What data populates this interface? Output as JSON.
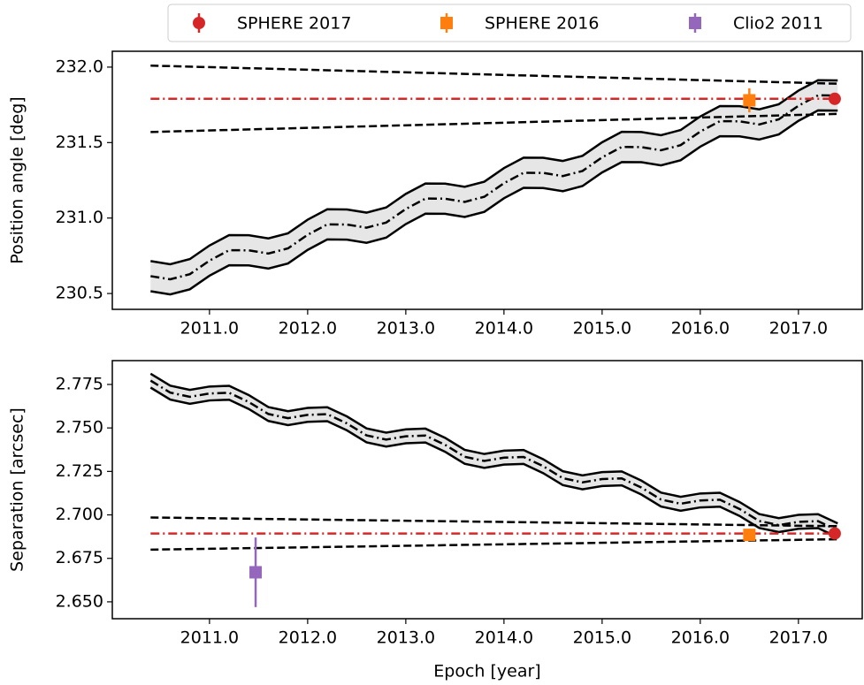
{
  "legend": [
    {
      "name": "SPHERE 2017",
      "color": "#d62728",
      "marker": "circle"
    },
    {
      "name": "SPHERE 2016",
      "color": "#ff7f0e",
      "marker": "square"
    },
    {
      "name": "Clio2 2011",
      "color": "#9467bd",
      "marker": "square"
    }
  ],
  "chart_data": [
    {
      "type": "line",
      "ylabel": "Position angle [deg]",
      "xlim": [
        2010.01,
        2017.65
      ],
      "ylim": [
        230.395,
        232.105
      ],
      "xticks": [
        {
          "value": 2011,
          "label": "2011.0"
        },
        {
          "value": 2012,
          "label": "2012.0"
        },
        {
          "value": 2013,
          "label": "2013.0"
        },
        {
          "value": 2014,
          "label": "2014.0"
        },
        {
          "value": 2015,
          "label": "2015.0"
        },
        {
          "value": 2016,
          "label": "2016.0"
        },
        {
          "value": 2017,
          "label": "2017.0"
        }
      ],
      "yticks": [
        230.5,
        {
          "value": 231,
          "label": "231.0"
        },
        231.5,
        {
          "value": 232,
          "label": "232.0"
        }
      ],
      "x": [
        2010.4,
        2010.6,
        2010.8,
        2011.0,
        2011.2,
        2011.4,
        2011.6,
        2011.8,
        2012.0,
        2012.2,
        2012.4,
        2012.6,
        2012.8,
        2013.0,
        2013.2,
        2013.4,
        2013.6,
        2013.8,
        2014.0,
        2014.2,
        2014.4,
        2014.6,
        2014.8,
        2015.0,
        2015.2,
        2015.4,
        2015.6,
        2015.8,
        2016.0,
        2016.2,
        2016.4,
        2016.6,
        2016.8,
        2017.0,
        2017.2,
        2017.4
      ],
      "series": [
        {
          "color": "#000000",
          "style": "dashdot",
          "band": 0.1,
          "band_color": "#e6e6e6",
          "values": [
            230.615,
            230.594,
            230.628,
            230.718,
            230.787,
            230.786,
            230.765,
            230.799,
            230.889,
            230.958,
            230.957,
            230.936,
            230.97,
            231.06,
            231.129,
            231.128,
            231.107,
            231.141,
            231.231,
            231.3,
            231.299,
            231.278,
            231.312,
            231.402,
            231.471,
            231.47,
            231.449,
            231.483,
            231.573,
            231.642,
            231.641,
            231.62,
            231.654,
            231.744,
            231.813,
            231.812
          ]
        }
      ],
      "lines": [
        {
          "x": [
            2010.4,
            2017.4
          ],
          "values": [
            232.01,
            231.89
          ],
          "color": "#000000",
          "style": "dashed"
        },
        {
          "x": [
            2010.4,
            2017.4
          ],
          "values": [
            231.57,
            231.69
          ],
          "color": "#000000",
          "style": "dashed"
        },
        {
          "x": [
            2010.4,
            2017.4
          ],
          "values": [
            231.79,
            231.79
          ],
          "color": "#d62728",
          "style": "dashdot"
        }
      ],
      "points": [
        {
          "x": 2016.5,
          "value": 231.78,
          "error": 0.08,
          "color": "#ff7f0e",
          "marker": "square"
        },
        {
          "x": 2017.37,
          "value": 231.79,
          "error": 0.04,
          "color": "#d62728",
          "marker": "circle"
        }
      ]
    },
    {
      "type": "line",
      "ylabel": "Separation [arcsec]",
      "xlabel": "Epoch [year]",
      "xlim": [
        2010.01,
        2017.65
      ],
      "ylim": [
        2.6403,
        2.7887
      ],
      "xticks": [
        {
          "value": 2011,
          "label": "2011.0"
        },
        {
          "value": 2012,
          "label": "2012.0"
        },
        {
          "value": 2013,
          "label": "2013.0"
        },
        {
          "value": 2014,
          "label": "2014.0"
        },
        {
          "value": 2015,
          "label": "2015.0"
        },
        {
          "value": 2016,
          "label": "2016.0"
        },
        {
          "value": 2017,
          "label": "2017.0"
        }
      ],
      "yticks": [
        {
          "value": 2.65,
          "label": "2.650"
        },
        2.675,
        {
          "value": 2.7,
          "label": "2.700"
        },
        2.725,
        {
          "value": 2.75,
          "label": "2.750"
        },
        2.775
      ],
      "x": [
        2010.4,
        2010.6,
        2010.8,
        2011.0,
        2011.2,
        2011.4,
        2011.6,
        2011.8,
        2012.0,
        2012.2,
        2012.4,
        2012.6,
        2012.8,
        2013.0,
        2013.2,
        2013.4,
        2013.6,
        2013.8,
        2014.0,
        2014.2,
        2014.4,
        2014.6,
        2014.8,
        2015.0,
        2015.2,
        2015.4,
        2015.6,
        2015.8,
        2016.0,
        2016.2,
        2016.4,
        2016.6,
        2016.8,
        2017.0,
        2017.2,
        2017.4
      ],
      "series": [
        {
          "color": "#000000",
          "style": "dashdot",
          "band": 0.004,
          "band_color": "#e6e6e6",
          "values": [
            2.7772,
            2.7703,
            2.7679,
            2.7698,
            2.7702,
            2.7649,
            2.758,
            2.7556,
            2.7575,
            2.7579,
            2.7526,
            2.7457,
            2.7433,
            2.7452,
            2.7456,
            2.7403,
            2.7334,
            2.731,
            2.7329,
            2.7333,
            2.728,
            2.7211,
            2.7187,
            2.7206,
            2.721,
            2.7157,
            2.7088,
            2.7064,
            2.7083,
            2.7087,
            2.7034,
            2.6965,
            2.6941,
            2.696,
            2.6964,
            2.6911
          ]
        }
      ],
      "lines": [
        {
          "x": [
            2010.4,
            2017.4
          ],
          "values": [
            2.6985,
            2.6935
          ],
          "color": "#000000",
          "style": "dashed"
        },
        {
          "x": [
            2010.4,
            2017.4
          ],
          "values": [
            2.68,
            2.686
          ],
          "color": "#000000",
          "style": "dashed"
        },
        {
          "x": [
            2010.4,
            2017.4
          ],
          "values": [
            2.6893,
            2.6893
          ],
          "color": "#d62728",
          "style": "dashdot"
        }
      ],
      "points": [
        {
          "x": 2011.47,
          "value": 2.667,
          "error": 0.02,
          "color": "#9467bd",
          "marker": "square"
        },
        {
          "x": 2016.5,
          "value": 2.6885,
          "error": 0.002,
          "color": "#ff7f0e",
          "marker": "square"
        },
        {
          "x": 2017.37,
          "value": 2.6893,
          "error": 0.001,
          "color": "#d62728",
          "marker": "circle"
        }
      ]
    }
  ]
}
